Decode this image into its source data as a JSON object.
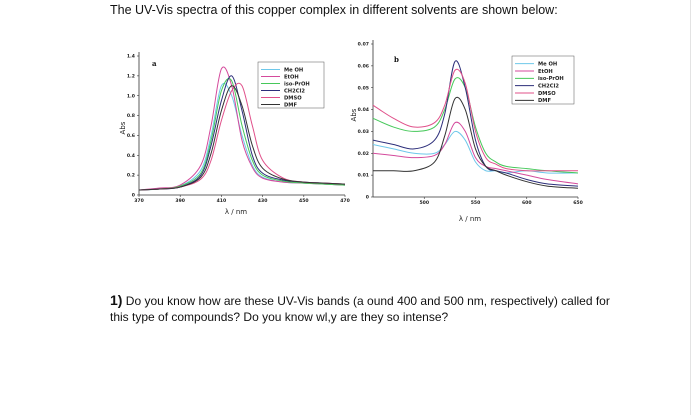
{
  "header": {
    "text": "The UV-Vis spectra of this copper complex in different solvents are shown below:"
  },
  "question": {
    "number": "1)",
    "text": "Do you know how are these UV-Vis bands (a ound 400 and 500 nm, respectively) called for this type of compounds? Do you know wl,y are they so intense?"
  },
  "chart_data": [
    {
      "type": "line",
      "panel": "a",
      "xlabel": "λ / nm",
      "ylabel": "Abs",
      "xticks": [
        370,
        390,
        410,
        430,
        450,
        470
      ],
      "yticks": [
        "0",
        "0.2",
        "0.4",
        "0.6",
        "0.8",
        "1.0",
        "1.2",
        "1.4"
      ],
      "xlim": [
        370,
        470
      ],
      "ylim": [
        0,
        1.4
      ],
      "legend_position": "top-right",
      "series": [
        {
          "name": "Me OH",
          "color": "#6ec8ea",
          "x": [
            370,
            380,
            390,
            400,
            405,
            410,
            415,
            420,
            425,
            430,
            440,
            450,
            460,
            470
          ],
          "y": [
            0.05,
            0.06,
            0.09,
            0.25,
            0.6,
            1.1,
            1.0,
            0.6,
            0.3,
            0.18,
            0.13,
            0.12,
            0.11,
            0.1
          ]
        },
        {
          "name": "EtOH",
          "color": "#d44a9c",
          "x": [
            370,
            380,
            390,
            400,
            405,
            410,
            415,
            420,
            425,
            430,
            440,
            450,
            460,
            470
          ],
          "y": [
            0.05,
            0.07,
            0.1,
            0.3,
            0.7,
            1.27,
            1.1,
            0.55,
            0.28,
            0.17,
            0.13,
            0.12,
            0.11,
            0.1
          ]
        },
        {
          "name": "iso-PrOH",
          "color": "#46c85a",
          "x": [
            370,
            380,
            390,
            400,
            405,
            410,
            415,
            420,
            425,
            430,
            440,
            450,
            460,
            470
          ],
          "y": [
            0.05,
            0.06,
            0.09,
            0.22,
            0.55,
            1.05,
            1.15,
            0.7,
            0.35,
            0.2,
            0.14,
            0.12,
            0.11,
            0.1
          ]
        },
        {
          "name": "CH2Cl2",
          "color": "#2c2e7a",
          "x": [
            370,
            380,
            390,
            400,
            405,
            410,
            415,
            420,
            425,
            430,
            440,
            450,
            460,
            470
          ],
          "y": [
            0.05,
            0.06,
            0.08,
            0.2,
            0.5,
            0.95,
            1.2,
            0.85,
            0.4,
            0.22,
            0.15,
            0.13,
            0.12,
            0.11
          ]
        },
        {
          "name": "DMSO",
          "color": "#e0508a",
          "x": [
            370,
            380,
            390,
            400,
            405,
            410,
            415,
            420,
            425,
            430,
            440,
            450,
            460,
            470
          ],
          "y": [
            0.05,
            0.06,
            0.08,
            0.16,
            0.35,
            0.75,
            1.05,
            1.1,
            0.7,
            0.35,
            0.17,
            0.13,
            0.12,
            0.11
          ]
        },
        {
          "name": "DMF",
          "color": "#333333",
          "x": [
            370,
            380,
            390,
            400,
            405,
            410,
            415,
            420,
            425,
            430,
            440,
            450,
            460,
            470
          ],
          "y": [
            0.05,
            0.06,
            0.08,
            0.18,
            0.42,
            0.85,
            1.1,
            0.9,
            0.5,
            0.27,
            0.16,
            0.13,
            0.12,
            0.11
          ]
        }
      ]
    },
    {
      "type": "line",
      "panel": "b",
      "xlabel": "λ / nm",
      "ylabel": "Abs",
      "xticks": [
        500,
        550,
        600,
        650
      ],
      "yticks": [
        "0",
        "0.01",
        "0.02",
        "0.03",
        "0.04",
        "0.05",
        "0.06",
        "0.07"
      ],
      "xlim": [
        450,
        650
      ],
      "ylim": [
        0,
        0.07
      ],
      "legend_position": "top-right",
      "series": [
        {
          "name": "Me OH",
          "color": "#6ec8ea",
          "x": [
            450,
            470,
            490,
            510,
            520,
            530,
            540,
            550,
            560,
            570,
            580,
            600,
            620,
            650
          ],
          "y": [
            0.024,
            0.022,
            0.02,
            0.02,
            0.024,
            0.03,
            0.026,
            0.016,
            0.012,
            0.012,
            0.011,
            0.012,
            0.011,
            0.011
          ]
        },
        {
          "name": "EtOH",
          "color": "#d44a9c",
          "x": [
            450,
            470,
            490,
            510,
            520,
            530,
            540,
            550,
            560,
            570,
            580,
            600,
            620,
            650
          ],
          "y": [
            0.02,
            0.019,
            0.018,
            0.019,
            0.024,
            0.034,
            0.03,
            0.018,
            0.014,
            0.013,
            0.012,
            0.01,
            0.008,
            0.006
          ]
        },
        {
          "name": "iso-PrOH",
          "color": "#46c85a",
          "x": [
            450,
            470,
            490,
            510,
            520,
            530,
            540,
            550,
            560,
            570,
            580,
            600,
            620,
            650
          ],
          "y": [
            0.036,
            0.032,
            0.03,
            0.032,
            0.04,
            0.054,
            0.05,
            0.032,
            0.02,
            0.016,
            0.014,
            0.013,
            0.012,
            0.011
          ]
        },
        {
          "name": "CH2Cl2",
          "color": "#2c2e7a",
          "x": [
            450,
            470,
            490,
            510,
            520,
            530,
            540,
            550,
            560,
            570,
            580,
            600,
            620,
            650
          ],
          "y": [
            0.026,
            0.024,
            0.022,
            0.026,
            0.038,
            0.062,
            0.05,
            0.026,
            0.014,
            0.012,
            0.011,
            0.008,
            0.006,
            0.005
          ]
        },
        {
          "name": "DMSO",
          "color": "#e0508a",
          "x": [
            450,
            470,
            490,
            510,
            520,
            530,
            540,
            550,
            560,
            570,
            580,
            600,
            620,
            650
          ],
          "y": [
            0.042,
            0.036,
            0.032,
            0.034,
            0.042,
            0.058,
            0.052,
            0.03,
            0.018,
            0.015,
            0.013,
            0.012,
            0.012,
            0.012
          ]
        },
        {
          "name": "DMF",
          "color": "#333333",
          "x": [
            450,
            470,
            490,
            510,
            520,
            530,
            540,
            550,
            560,
            570,
            580,
            600,
            620,
            650
          ],
          "y": [
            0.012,
            0.012,
            0.012,
            0.016,
            0.028,
            0.045,
            0.04,
            0.022,
            0.014,
            0.012,
            0.01,
            0.007,
            0.005,
            0.004
          ]
        }
      ]
    }
  ]
}
